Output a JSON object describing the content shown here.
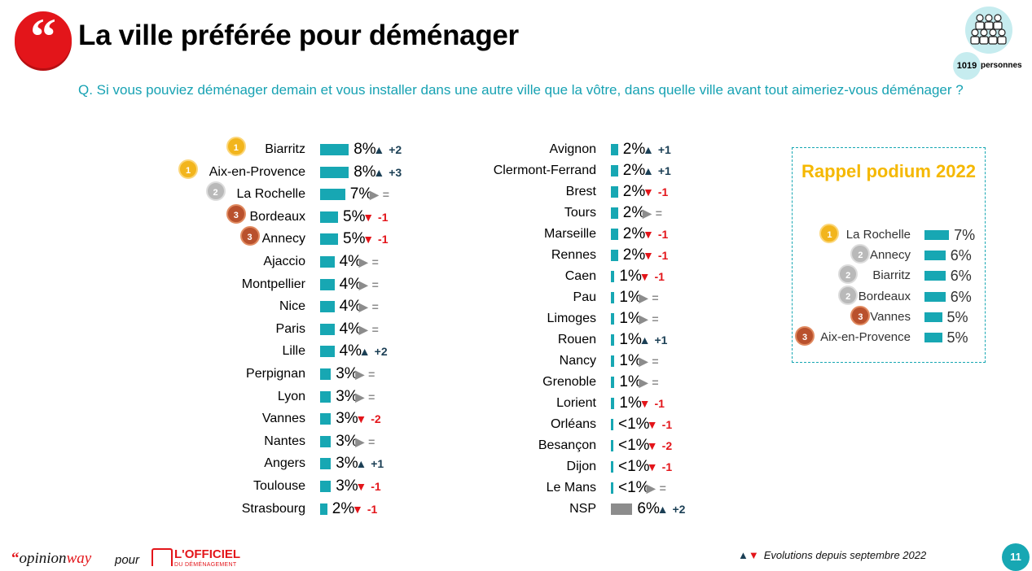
{
  "header": {
    "logo_glyph": "“",
    "title": "La ville préférée pour déménager",
    "sample_count": "1019",
    "sample_label": "personnes"
  },
  "question": "Q. Si vous pouviez déménager demain et vous installer dans une autre ville que la vôtre, dans quelle ville avant tout aimeriez-vous déménager ?",
  "colors": {
    "bar": "#17a7b3",
    "bar_nsp": "#8c8c8c",
    "up": "#1b3f55",
    "down": "#e3151a",
    "equal": "#8c8c8c",
    "accent": "#e3151a",
    "podium_title": "#f5b800"
  },
  "icons": {
    "up": "triangle-up-icon",
    "down": "triangle-down-icon",
    "equal": "triangle-right-icon",
    "medal": "medal-icon",
    "people": "people-group-icon"
  },
  "chart_data": [
    {
      "type": "bar",
      "orientation": "horizontal",
      "categories": [
        "Biarritz",
        "Aix-en-Provence",
        "La Rochelle",
        "Bordeaux",
        "Annecy",
        "Ajaccio",
        "Montpellier",
        "Nice",
        "Paris",
        "Lille",
        "Perpignan",
        "Lyon",
        "Vannes",
        "Nantes",
        "Angers",
        "Toulouse",
        "Strasbourg",
        "Avignon",
        "Clermont-Ferrand",
        "Brest",
        "Tours",
        "Marseille",
        "Rennes",
        "Caen",
        "Pau",
        "Limoges",
        "Rouen",
        "Nancy",
        "Grenoble",
        "Lorient",
        "Orléans",
        "Besançon",
        "Dijon",
        "Le Mans",
        "NSP"
      ],
      "values": [
        8,
        8,
        7,
        5,
        5,
        4,
        4,
        4,
        4,
        4,
        3,
        3,
        3,
        3,
        3,
        3,
        2,
        2,
        2,
        2,
        2,
        2,
        2,
        1,
        1,
        1,
        1,
        1,
        1,
        1,
        0.5,
        0.5,
        0.5,
        0.5,
        6
      ],
      "value_labels": [
        "8%",
        "8%",
        "7%",
        "5%",
        "5%",
        "4%",
        "4%",
        "4%",
        "4%",
        "4%",
        "3%",
        "3%",
        "3%",
        "3%",
        "3%",
        "3%",
        "2%",
        "2%",
        "2%",
        "2%",
        "2%",
        "2%",
        "2%",
        "1%",
        "1%",
        "1%",
        "1%",
        "1%",
        "1%",
        "1%",
        "<1%",
        "<1%",
        "<1%",
        "<1%",
        "6%"
      ],
      "evolution": [
        "+2",
        "+3",
        "=",
        "-1",
        "-1",
        "=",
        "=",
        "=",
        "=",
        "+2",
        "=",
        "=",
        "-2",
        "=",
        "+1",
        "-1",
        "-1",
        "+1",
        "+1",
        "-1",
        "=",
        "-1",
        "-1",
        "-1",
        "=",
        "=",
        "+1",
        "=",
        "=",
        "-1",
        "-1",
        "-2",
        "-1",
        "=",
        "+2"
      ],
      "direction": [
        "up",
        "up",
        "equal",
        "down",
        "down",
        "equal",
        "equal",
        "equal",
        "equal",
        "up",
        "equal",
        "equal",
        "down",
        "equal",
        "up",
        "down",
        "down",
        "up",
        "up",
        "down",
        "equal",
        "down",
        "down",
        "down",
        "equal",
        "equal",
        "up",
        "equal",
        "equal",
        "down",
        "down",
        "down",
        "down",
        "equal",
        "up"
      ],
      "medals": [
        1,
        1,
        2,
        3,
        3,
        0,
        0,
        0,
        0,
        0,
        0,
        0,
        0,
        0,
        0,
        0,
        0,
        0,
        0,
        0,
        0,
        0,
        0,
        0,
        0,
        0,
        0,
        0,
        0,
        0,
        0,
        0,
        0,
        0,
        0
      ],
      "unit": "%"
    },
    {
      "type": "bar",
      "orientation": "horizontal",
      "title": "Rappel podium 2022",
      "categories": [
        "La Rochelle",
        "Annecy",
        "Biarritz",
        "Bordeaux",
        "Vannes",
        "Aix-en-Provence"
      ],
      "values": [
        7,
        6,
        6,
        6,
        5,
        5
      ],
      "value_labels": [
        "7%",
        "6%",
        "6%",
        "6%",
        "5%",
        "5%"
      ],
      "medals": [
        1,
        2,
        2,
        2,
        3,
        3
      ],
      "unit": "%"
    }
  ],
  "footer": {
    "brand_quote": "“",
    "brand_opinion": "opinion",
    "brand_way": "way",
    "pour": "pour",
    "partner_name": "L'OFFICIEL",
    "partner_sub": "DU DÉMÉNAGEMENT",
    "legend_up": "▲",
    "legend_down": "▼",
    "legend_text": "Evolutions depuis septembre 2022",
    "page_number": "11"
  }
}
